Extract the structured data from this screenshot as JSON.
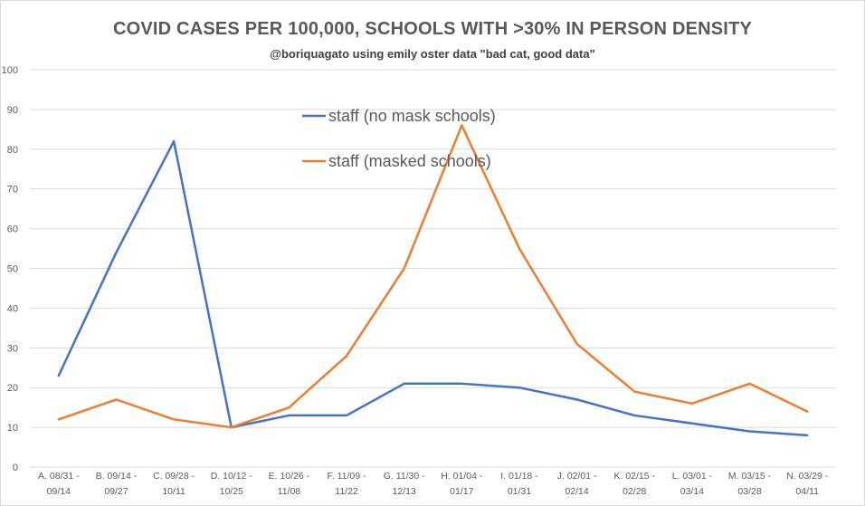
{
  "chart_data": {
    "type": "line",
    "title": "COVID CASES PER 100,000, SCHOOLS WITH >30% IN PERSON DENSITY",
    "subtitle": "@boriquagato using emily oster data \"bad cat, good data\"",
    "xlabel": "",
    "ylabel": "",
    "ylim": [
      0,
      100
    ],
    "yticks": [
      0,
      10,
      20,
      30,
      40,
      50,
      60,
      70,
      80,
      90,
      100
    ],
    "grid": true,
    "legend_position": "upper-center",
    "categories": [
      [
        "A. 08/31 -",
        "09/14"
      ],
      [
        "B. 09/14 -",
        "09/27"
      ],
      [
        "C. 09/28 -",
        "10/11"
      ],
      [
        "D. 10/12 -",
        "10/25"
      ],
      [
        "E. 10/26 -",
        "11/08"
      ],
      [
        "F. 11/09 -",
        "11/22"
      ],
      [
        "G. 11/30 -",
        "12/13"
      ],
      [
        "H. 01/04 -",
        "01/17"
      ],
      [
        "I. 01/18 -",
        "01/31"
      ],
      [
        "J. 02/01 -",
        "02/14"
      ],
      [
        "K. 02/15 -",
        "02/28"
      ],
      [
        "L. 03/01 -",
        "03/14"
      ],
      [
        "M. 03/15 -",
        "03/28"
      ],
      [
        "N. 03/29 -",
        "04/11"
      ]
    ],
    "series": [
      {
        "name": "staff (no mask schools)",
        "color": "#4472c4",
        "values": [
          23,
          54,
          82,
          10,
          13,
          13,
          21,
          21,
          20,
          17,
          13,
          11,
          9,
          8
        ]
      },
      {
        "name": "staff (masked schools)",
        "color": "#ed7d31",
        "values": [
          12,
          17,
          12,
          10,
          15,
          28,
          50,
          86,
          55,
          31,
          19,
          16,
          21,
          14
        ]
      }
    ]
  }
}
